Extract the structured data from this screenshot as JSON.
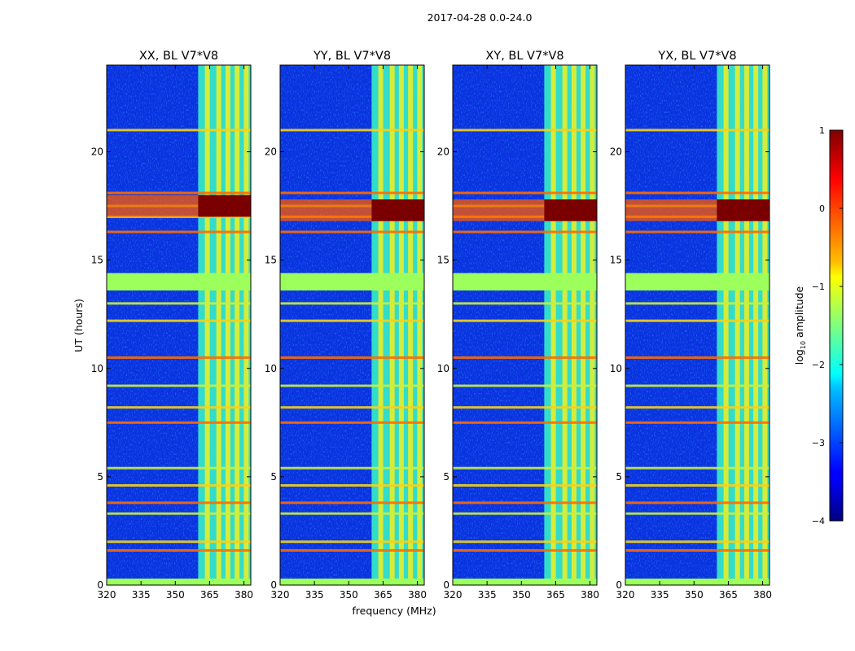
{
  "figure": {
    "suptitle": "2017-04-28 0.0-24.0",
    "xlabel": "frequency (MHz)",
    "ylabel": "UT (hours)"
  },
  "chart_data": {
    "type": "heatmap",
    "title": "2017-04-28 0.0-24.0",
    "xlabel": "frequency (MHz)",
    "ylabel": "UT (hours)",
    "xlim": [
      320,
      383
    ],
    "ylim": [
      0,
      24
    ],
    "xticks": [
      320,
      335,
      350,
      365,
      380
    ],
    "yticks": [
      0,
      5,
      10,
      15,
      20
    ],
    "panels": [
      {
        "name": "XX, BL V7*V8",
        "band_start_mhz": 360,
        "strong_ut": [
          17.0,
          18.0
        ]
      },
      {
        "name": "YY, BL V7*V8",
        "band_start_mhz": 360,
        "strong_ut": [
          16.8,
          17.8
        ]
      },
      {
        "name": "XY, BL V7*V8",
        "band_start_mhz": 360,
        "strong_ut": [
          16.8,
          17.8
        ]
      },
      {
        "name": "YX, BL V7*V8",
        "band_start_mhz": 360,
        "strong_ut": [
          16.8,
          17.8
        ]
      }
    ],
    "flagged_ut_ranges": [
      [
        0.0,
        0.3
      ],
      [
        13.6,
        14.4
      ]
    ],
    "rfi_band_mhz": [
      360,
      383
    ],
    "rfi_channels_mhz": [
      364,
      369,
      373,
      377,
      381
    ],
    "hot_rows_ut": [
      1.6,
      2.0,
      3.3,
      3.8,
      4.6,
      5.4,
      7.5,
      8.2,
      9.2,
      10.5,
      12.2,
      13.0,
      16.3,
      17.0,
      17.5,
      18.1,
      21.0
    ],
    "colorbar": {
      "label": "log10 amplitude",
      "label_base": "log",
      "label_sub": "10",
      "label_rest": " amplitude",
      "min": -4,
      "max": 1,
      "ticks": [
        1,
        0,
        -1,
        -2,
        -3,
        -4
      ],
      "tick_labels": [
        "1",
        "0",
        "−1",
        "−2",
        "−3",
        "−4"
      ],
      "colormap": "jet"
    },
    "colors": {
      "background": "#0a33e0",
      "flagged": "#9cff5c",
      "band": "#35e6c8",
      "strong": "#7a0000"
    }
  }
}
